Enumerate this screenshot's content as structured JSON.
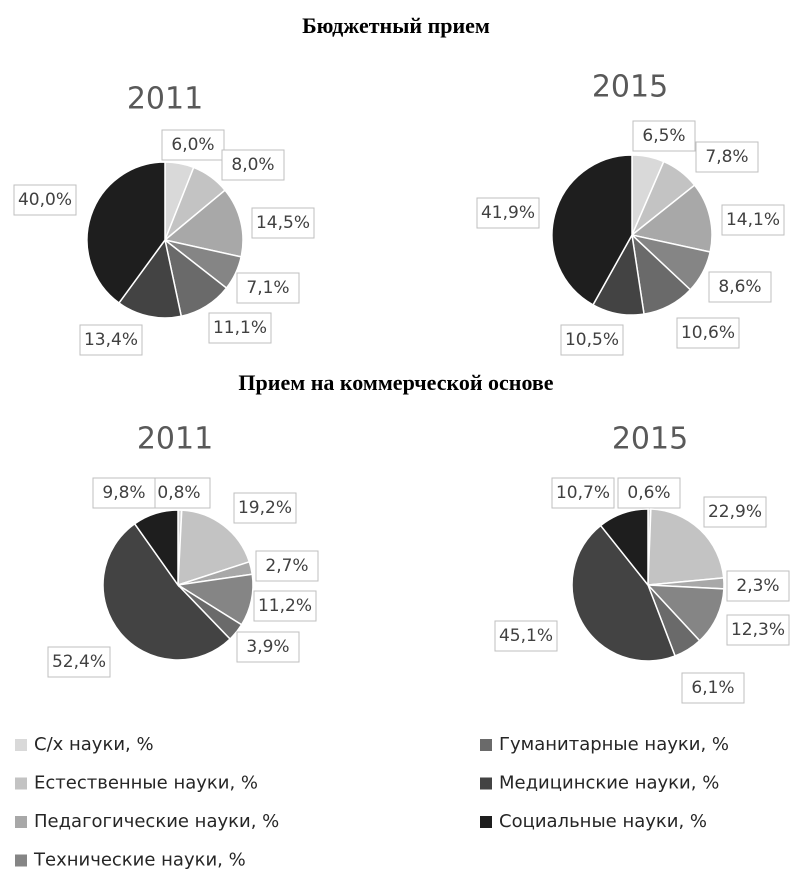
{
  "headings": [
    "Бюджетный прием",
    "Прием на коммерческой основе"
  ],
  "categories": [
    "С/х науки, %",
    "Естественные науки, %",
    "Педагогические науки, %",
    "Технические науки, %",
    "Гуманитарные науки, %",
    "Медицинские науки, %",
    "Социальные науки, %"
  ],
  "colors": [
    "#d9d9d9",
    "#c3c3c3",
    "#a8a8a8",
    "#858585",
    "#6a6a6a",
    "#434343",
    "#1e1e1e"
  ],
  "chart_data": [
    {
      "type": "pie",
      "title": "2011",
      "values": [
        6.0,
        8.0,
        14.5,
        7.1,
        11.1,
        13.4,
        40.0
      ],
      "value_labels": [
        "6,0%",
        "8,0%",
        "14,5%",
        "7,1%",
        "11,1%",
        "13,4%",
        "40,0%"
      ]
    },
    {
      "type": "pie",
      "title": "2015",
      "values": [
        6.5,
        7.8,
        14.1,
        8.6,
        10.6,
        10.5,
        41.9
      ],
      "value_labels": [
        "6,5%",
        "7,8%",
        "14,1%",
        "8,6%",
        "10,6%",
        "10,5%",
        "41,9%"
      ]
    },
    {
      "type": "pie",
      "title": "2011",
      "values": [
        0.8,
        19.2,
        2.7,
        11.2,
        3.9,
        52.4,
        9.8
      ],
      "value_labels": [
        "0,8%",
        "19,2%",
        "2,7%",
        "11,2%",
        "3,9%",
        "52,4%",
        "9,8%"
      ]
    },
    {
      "type": "pie",
      "title": "2015",
      "values": [
        0.6,
        22.9,
        2.3,
        12.3,
        6.1,
        45.1,
        10.7
      ],
      "value_labels": [
        "0,6%",
        "22,9%",
        "2,3%",
        "12,3%",
        "6,1%",
        "45,1%",
        "10,7%"
      ]
    }
  ]
}
